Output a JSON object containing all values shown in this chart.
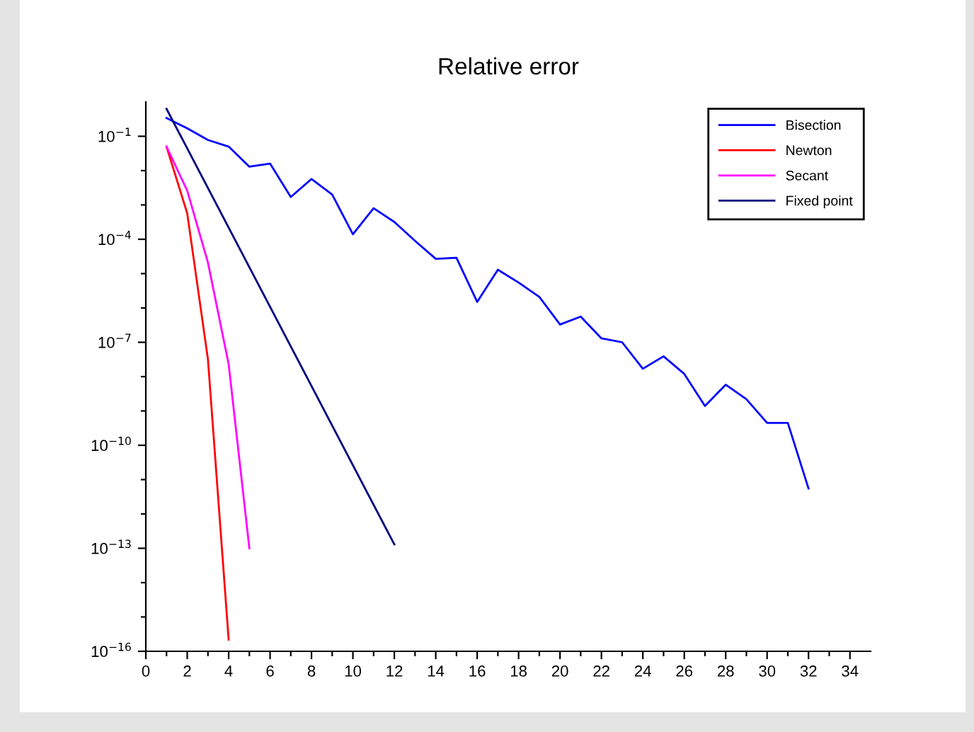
{
  "chart_data": {
    "type": "line",
    "title": "Relative error",
    "log": "y",
    "grid": false,
    "legend": "top right",
    "marker": "none",
    "line_style": "solid",
    "xlim": [
      0,
      35
    ],
    "ylim": [
      1e-16,
      1
    ],
    "xticks": [
      0,
      {
        "value": 1,
        "label": null
      },
      2,
      {
        "value": 3,
        "label": null
      },
      4,
      {
        "value": 5,
        "label": null
      },
      6,
      {
        "value": 7,
        "label": null
      },
      8,
      {
        "value": 9,
        "label": null
      },
      10,
      {
        "value": 11,
        "label": null
      },
      12,
      {
        "value": 13,
        "label": null
      },
      14,
      {
        "value": 15,
        "label": null
      },
      16,
      {
        "value": 17,
        "label": null
      },
      18,
      {
        "value": 19,
        "label": null
      },
      20,
      {
        "value": 21,
        "label": null
      },
      22,
      {
        "value": 23,
        "label": null
      },
      24,
      {
        "value": 25,
        "label": null
      },
      26,
      {
        "value": 27,
        "label": null
      },
      28,
      {
        "value": 29,
        "label": null
      },
      30,
      {
        "value": 31,
        "label": null
      },
      32,
      {
        "value": 33,
        "label": null
      },
      34
    ],
    "yticks": [
      {
        "value": 1e-16,
        "label": "10$^{−16}$"
      },
      {
        "value": 1e-15,
        "label": null
      },
      {
        "value": 1e-14,
        "label": null
      },
      {
        "value": 1e-13,
        "label": "10$^{−13}$"
      },
      {
        "value": 1e-12,
        "label": null
      },
      {
        "value": 1e-11,
        "label": null
      },
      {
        "value": 1e-10,
        "label": "10$^{−10}$"
      },
      {
        "value": 1e-09,
        "label": null
      },
      {
        "value": 1e-08,
        "label": null
      },
      {
        "value": 1e-07,
        "label": "10$^{−7}$"
      },
      {
        "value": 1e-06,
        "label": null
      },
      {
        "value": 1e-05,
        "label": null
      },
      {
        "value": 0.0001,
        "label": "10$^{−4}$"
      },
      {
        "value": 0.001,
        "label": null
      },
      {
        "value": 0.01,
        "label": null
      },
      {
        "value": 0.1,
        "label": "10$^{−1}$"
      }
    ],
    "series": [
      {
        "name": "Bisection",
        "color": "#0000ff",
        "x": [
          1,
          2,
          3,
          4,
          5,
          6,
          7,
          8,
          9,
          10,
          11,
          12,
          13,
          14,
          15,
          16,
          17,
          18,
          19,
          20,
          21,
          22,
          23,
          24,
          25,
          26,
          27,
          28,
          29,
          30,
          31,
          32
        ],
        "values": [
          0.34,
          0.17,
          0.078,
          0.05,
          0.013,
          0.016,
          0.0017,
          0.0057,
          0.002,
          0.00014,
          0.0008,
          0.00032,
          9e-05,
          2.7e-05,
          2.9e-05,
          1.5e-06,
          1.3e-05,
          5.5e-06,
          2.1e-06,
          3.3e-07,
          5.6e-07,
          1.3e-07,
          1e-07,
          1.7e-08,
          3.9e-08,
          1.2e-08,
          1.4e-09,
          5.8e-09,
          2.2e-09,
          4.5e-10,
          4.5e-10,
          5.5e-12
        ]
      },
      {
        "name": "Newton",
        "color": "#ff0000",
        "x": [
          1,
          2,
          3,
          4
        ],
        "values": [
          0.05,
          0.00057,
          3.2e-08,
          2.2e-16
        ]
      },
      {
        "name": "Secant",
        "color": "#ff00ff",
        "x": [
          1,
          2,
          3,
          4,
          5
        ],
        "values": [
          0.05,
          0.0026,
          2.1e-05,
          2.3e-08,
          1e-13
        ]
      },
      {
        "name": "Fixed point",
        "color": "#000080",
        "x": [
          1,
          12
        ],
        "values": [
          0.63,
          1.3e-13
        ]
      }
    ]
  }
}
